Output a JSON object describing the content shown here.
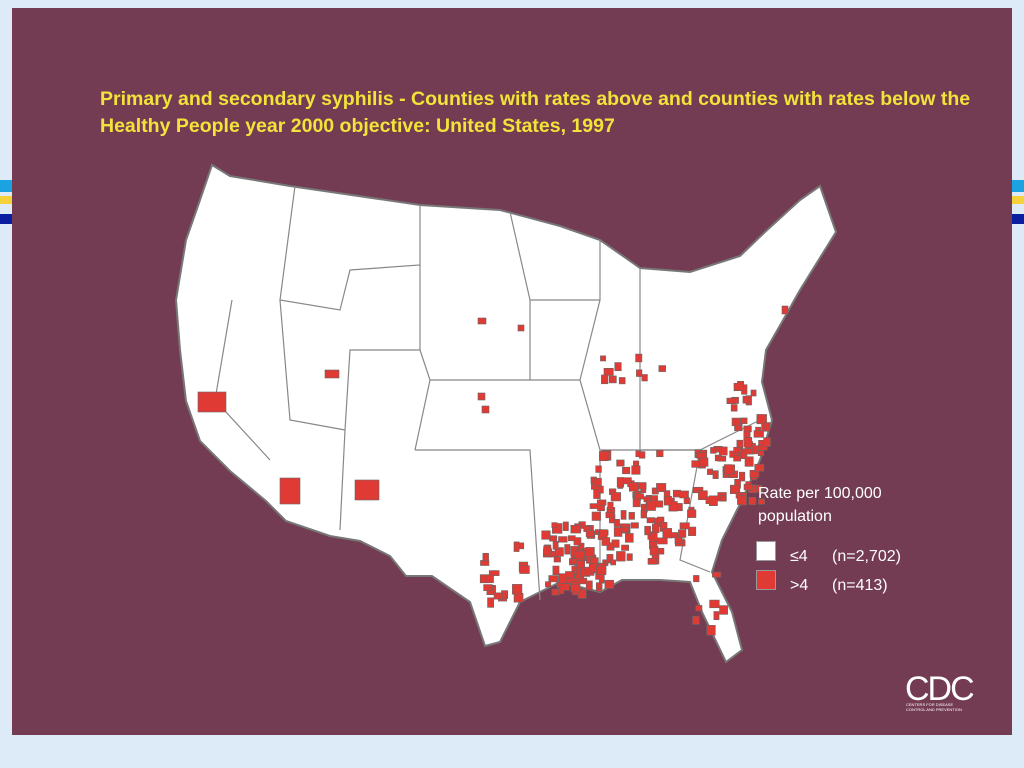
{
  "title": "Primary and secondary syphilis - Counties with rates above and counties with rates below the Healthy People year 2000 objective:  United States, 1997",
  "legend": {
    "title_lines": [
      "Rate per 100,000",
      "population"
    ],
    "items": [
      {
        "label": "≤4",
        "count": "(n=2,702)",
        "color": "#ffffff"
      },
      {
        "label": ">4",
        "count": "(n=413)",
        "color": "#e03a35"
      }
    ]
  },
  "logo": {
    "name": "CDC",
    "subtitle": "CENTERS FOR DISEASE CONTROL AND PREVENTION"
  }
}
